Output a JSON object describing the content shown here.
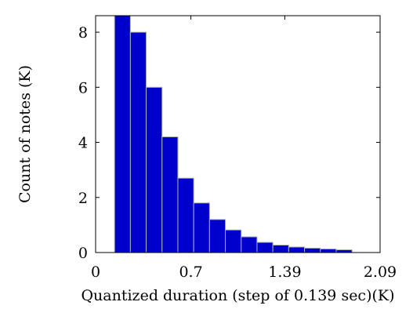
{
  "chart_data": {
    "type": "bar",
    "subtype": "histogram",
    "bin_width": 0.1163,
    "bins": [
      {
        "x0": 0.1392,
        "x1": 0.2555,
        "value": 8.6
      },
      {
        "x0": 0.2555,
        "x1": 0.3718,
        "value": 8.0
      },
      {
        "x0": 0.3718,
        "x1": 0.4881,
        "value": 6.0
      },
      {
        "x0": 0.4881,
        "x1": 0.6044,
        "value": 4.2
      },
      {
        "x0": 0.6044,
        "x1": 0.7207,
        "value": 2.7
      },
      {
        "x0": 0.7207,
        "x1": 0.837,
        "value": 1.8
      },
      {
        "x0": 0.837,
        "x1": 0.9533,
        "value": 1.2
      },
      {
        "x0": 0.9533,
        "x1": 1.0696,
        "value": 0.82
      },
      {
        "x0": 1.0696,
        "x1": 1.1859,
        "value": 0.57
      },
      {
        "x0": 1.1859,
        "x1": 1.3022,
        "value": 0.37
      },
      {
        "x0": 1.3022,
        "x1": 1.4185,
        "value": 0.27
      },
      {
        "x0": 1.4185,
        "x1": 1.5348,
        "value": 0.2
      },
      {
        "x0": 1.5348,
        "x1": 1.6511,
        "value": 0.16
      },
      {
        "x0": 1.6511,
        "x1": 1.7674,
        "value": 0.13
      },
      {
        "x0": 1.7674,
        "x1": 1.8837,
        "value": 0.1
      }
    ],
    "xlabel": "Quantized duration (step of 0.139 sec)(K)",
    "ylabel": "Count of notes (K)",
    "xlim": [
      0,
      2.09
    ],
    "ylim": [
      0,
      8.6
    ],
    "xticks": [
      {
        "value": 0,
        "label": "0"
      },
      {
        "value": 0.7,
        "label": "0.7"
      },
      {
        "value": 1.39,
        "label": "1.39"
      },
      {
        "value": 2.09,
        "label": "2.09"
      }
    ],
    "yticks": [
      {
        "value": 0,
        "label": "0"
      },
      {
        "value": 2,
        "label": "2"
      },
      {
        "value": 4,
        "label": "4"
      },
      {
        "value": 6,
        "label": "6"
      },
      {
        "value": 8,
        "label": "8"
      }
    ],
    "grid": false,
    "bar_fill_color": "#0000cc",
    "bar_edge_color": "#b0b0b0",
    "axis_color": "#000000"
  }
}
